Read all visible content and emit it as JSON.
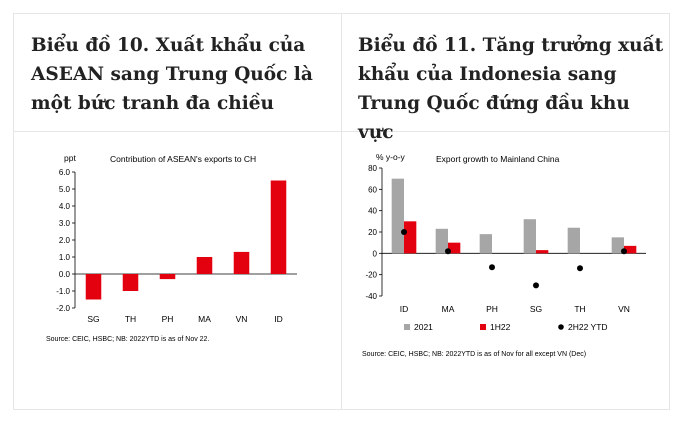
{
  "panels": [
    {
      "title": "Biểu đồ 10. Xuất khẩu của ASEAN sang Trung Quốc là một bức tranh đa chiều"
    },
    {
      "title": "Biểu đồ 11. Tăng trưởng xuất khẩu của Indonesia sang Trung Quốc đứng đầu khu vực"
    }
  ],
  "chart_data": [
    {
      "type": "bar",
      "title": "Contribution of ASEAN's exports to CH",
      "ylabel": "ppt",
      "categories": [
        "SG",
        "TH",
        "PH",
        "MA",
        "VN",
        "ID"
      ],
      "values": [
        -1.5,
        -1.0,
        -0.3,
        1.0,
        1.3,
        5.5
      ],
      "ylim": [
        -2.0,
        6.0
      ],
      "yticks": [
        "6.0",
        "5.0",
        "4.0",
        "3.0",
        "2.0",
        "1.0",
        "0.0",
        "-1.0",
        "-2.0"
      ],
      "color": "#e3000f",
      "source": "Source: CEIC, HSBC; NB: 2022YTD is as of Nov 22."
    },
    {
      "type": "bar",
      "title": "Export growth to Mainland China",
      "ylabel": "% y-o-y",
      "categories": [
        "ID",
        "MA",
        "PH",
        "SG",
        "TH",
        "VN"
      ],
      "series": [
        {
          "name": "2021",
          "values": [
            70,
            23,
            18,
            32,
            24,
            15
          ],
          "color": "#a6a6a6",
          "kind": "bar"
        },
        {
          "name": "1H22",
          "values": [
            30,
            10,
            0,
            3,
            0,
            7
          ],
          "color": "#e3000f",
          "kind": "bar"
        },
        {
          "name": "2H22 YTD",
          "values": [
            20,
            2,
            -13,
            -30,
            -14,
            2
          ],
          "color": "#000000",
          "kind": "dot"
        }
      ],
      "ylim": [
        -40,
        80
      ],
      "yticks": [
        "80",
        "60",
        "40",
        "20",
        "0",
        "-20",
        "-40"
      ],
      "source": "Source: CEIC, HSBC; NB: 2022YTD is as of Nov for all except VN (Dec)"
    }
  ]
}
